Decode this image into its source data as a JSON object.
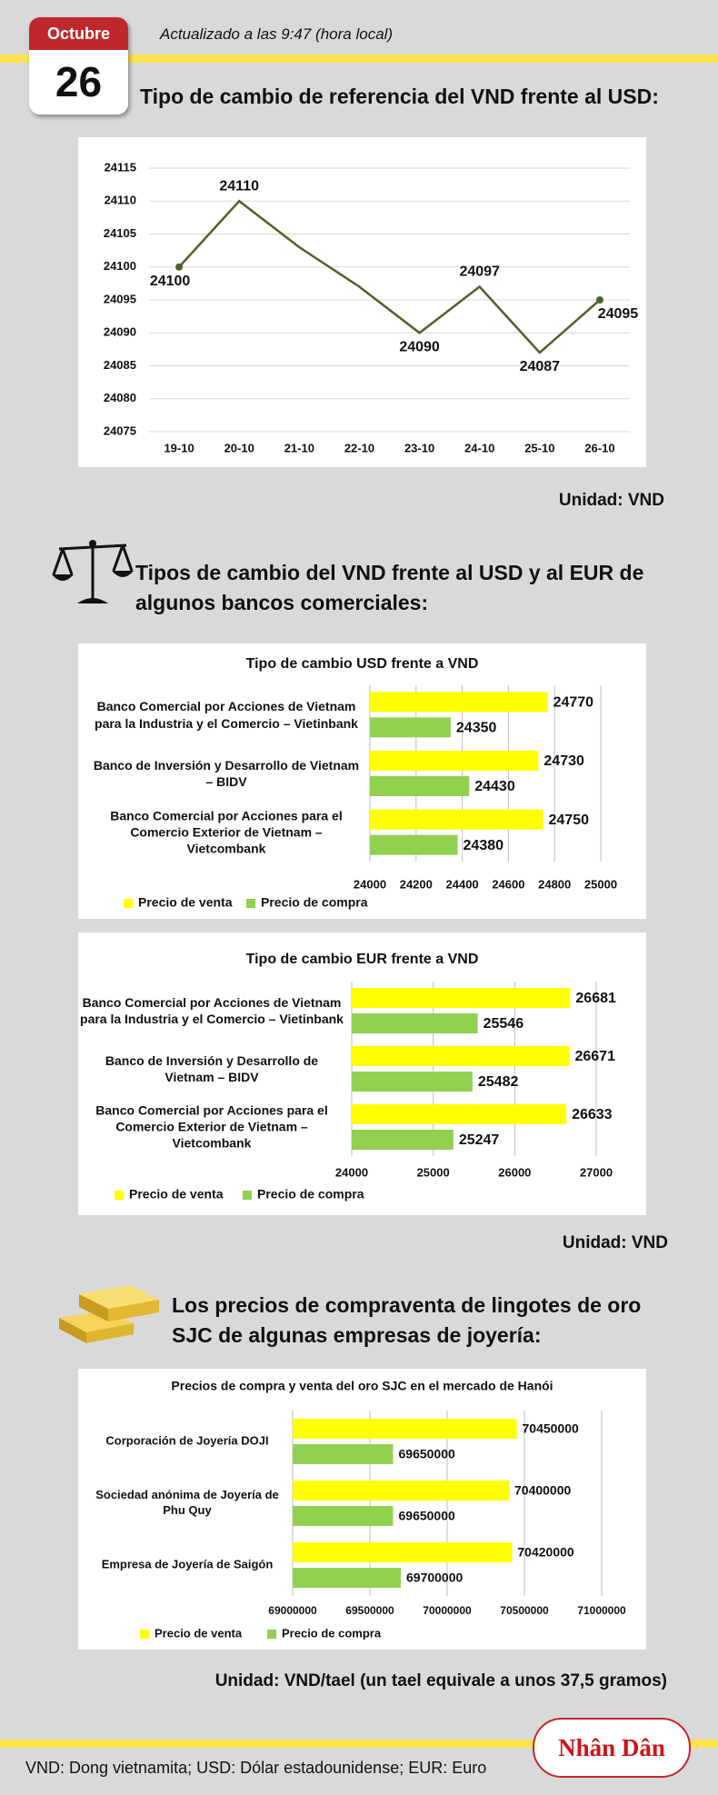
{
  "header": {
    "month": "Octubre",
    "day": "26",
    "updated": "Actualizado a las 9:47 (hora local)"
  },
  "sections": [
    {
      "title": "Tipo de cambio de referencia del VND frente al USD:",
      "unit": "Unidad: VND"
    },
    {
      "title": "Tipos de cambio del VND frente al USD y al EUR de algunos bancos comerciales:",
      "unit": "Unidad: VND"
    },
    {
      "title": "Los precios de compraventa de lingotes de oro SJC de algunas empresas de joyería:",
      "unit": "Unidad: VND/tael (un tael equivale a unos 37,5 gramos)"
    }
  ],
  "footer": {
    "note": "VND: Dong vietnamita; USD: Dólar estadounidense; EUR: Euro",
    "logo": "Nhân Dân"
  },
  "chart_data": [
    {
      "type": "line",
      "categories": [
        "19-10",
        "20-10",
        "21-10",
        "22-10",
        "23-10",
        "24-10",
        "25-10",
        "26-10"
      ],
      "values": [
        24100,
        24110,
        24103,
        24097,
        24090,
        24097,
        24087,
        24095
      ],
      "value_labels": [
        "24100",
        "24110",
        null,
        null,
        "24090",
        "24097",
        "24087",
        "24095"
      ],
      "color": "#4f6228",
      "ylim": [
        24075,
        24115
      ],
      "yticks": [
        24075,
        24080,
        24085,
        24090,
        24095,
        24100,
        24105,
        24110,
        24115
      ],
      "grid": true
    },
    {
      "type": "hbar",
      "title": "Tipo de cambio USD frente a VND",
      "categories": [
        "Banco Comercial por Acciones de Vietnam para la Industria y el Comercio – Vietinbank",
        "Banco de Inversión y Desarrollo de Vietnam – BIDV",
        "Banco Comercial por Acciones para el Comercio Exterior de Vietnam – Vietcombank"
      ],
      "series": [
        {
          "name": "Precio de venta",
          "color": "#ffff00",
          "values": [
            24770,
            24730,
            24750
          ]
        },
        {
          "name": "Precio de compra",
          "color": "#92d050",
          "values": [
            24350,
            24430,
            24380
          ]
        }
      ],
      "xlim": [
        24000,
        25000
      ],
      "xticks": [
        24000,
        24200,
        24400,
        24600,
        24800,
        25000
      ],
      "grid": true,
      "legend": "bottom-left"
    },
    {
      "type": "hbar",
      "title": "Tipo de cambio EUR frente a VND",
      "categories": [
        "Banco Comercial por Acciones de Vietnam para la Industria y el Comercio – Vietinbank",
        "Banco de Inversión y Desarrollo de Vietnam – BIDV",
        "Banco Comercial por Acciones para el Comercio Exterior de Vietnam – Vietcombank"
      ],
      "series": [
        {
          "name": "Precio de venta",
          "color": "#ffff00",
          "values": [
            26681,
            26671,
            26633
          ]
        },
        {
          "name": "Precio de compra",
          "color": "#92d050",
          "values": [
            25546,
            25482,
            25247
          ]
        }
      ],
      "xlim": [
        24000,
        27000
      ],
      "xticks": [
        24000,
        25000,
        26000,
        27000
      ],
      "grid": true,
      "legend": "bottom-left"
    },
    {
      "type": "hbar",
      "title": "Precios de compra y venta del oro SJC en el mercado de Hanói",
      "categories": [
        "Corporación de Joyería DOJI",
        "Sociedad anónima de Joyería de Phu Quy",
        "Empresa de Joyería de Saigón"
      ],
      "series": [
        {
          "name": "Precio de venta",
          "color": "#ffff00",
          "values": [
            70450000,
            70400000,
            70420000
          ]
        },
        {
          "name": "Precio de compra",
          "color": "#92d050",
          "values": [
            69650000,
            69650000,
            69700000
          ]
        }
      ],
      "xlim": [
        69000000,
        71000000
      ],
      "xticks": [
        69000000,
        69500000,
        70000000,
        70500000,
        71000000
      ],
      "grid": true,
      "legend": "bottom-left"
    }
  ]
}
